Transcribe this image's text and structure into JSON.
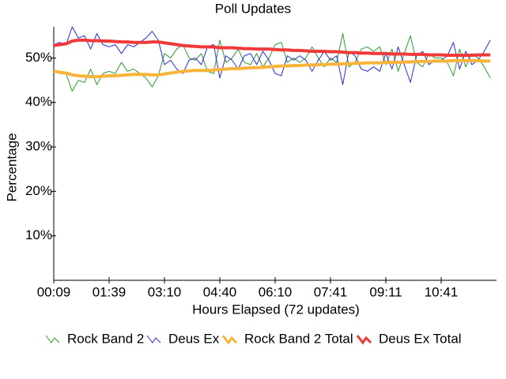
{
  "chart_data": {
    "type": "line",
    "title": "Poll Updates",
    "x_label": "Hours Elapsed (72 updates)",
    "y_label": "Percentage",
    "categories": [
      "00:09",
      null,
      null,
      null,
      null,
      null,
      null,
      null,
      null,
      "01:39",
      null,
      null,
      null,
      null,
      null,
      null,
      null,
      null,
      "03:10",
      null,
      null,
      null,
      null,
      null,
      null,
      null,
      null,
      "04:40",
      null,
      null,
      null,
      null,
      null,
      null,
      null,
      null,
      "06:10",
      null,
      null,
      null,
      null,
      null,
      null,
      null,
      null,
      "07:41",
      null,
      null,
      null,
      null,
      null,
      null,
      null,
      null,
      "09:11",
      null,
      null,
      null,
      null,
      null,
      null,
      null,
      null,
      "10:41",
      null,
      null,
      null,
      null,
      null,
      null,
      null,
      null
    ],
    "ylim": [
      0,
      57
    ],
    "yticks": [
      {
        "value": 10,
        "label": "10%"
      },
      {
        "value": 20,
        "label": "20%"
      },
      {
        "value": 30,
        "label": "30%"
      },
      {
        "value": 40,
        "label": "40%"
      },
      {
        "value": 50,
        "label": "50%"
      }
    ],
    "series": [
      {
        "name": "Rock Band 2",
        "color": "#2e9a2e",
        "width": 1,
        "values": [
          47,
          46.5,
          46.5,
          42.5,
          45,
          44.5,
          47.5,
          44,
          46.5,
          47,
          46.5,
          49,
          47,
          47.5,
          46.5,
          45.5,
          43.5,
          46,
          51,
          50,
          52,
          53,
          50,
          49.5,
          51,
          47,
          46.5,
          54,
          49,
          50,
          52,
          49,
          48.5,
          51,
          48,
          50,
          53,
          53.5,
          49,
          50,
          49,
          50,
          52.5,
          50,
          48,
          50,
          49,
          55.5,
          48,
          49,
          52,
          52.5,
          51.5,
          52.5,
          48.5,
          52,
          47,
          51,
          55,
          49,
          48,
          51,
          50,
          50,
          49,
          46,
          52,
          48,
          51,
          50,
          48,
          45.5
        ]
      },
      {
        "name": "Deus Ex",
        "color": "#2a2ae0",
        "width": 1,
        "values": [
          53,
          53.5,
          53,
          57,
          54.5,
          55,
          52,
          55.5,
          53,
          52.5,
          53,
          51,
          53,
          52.5,
          53.5,
          54.5,
          56,
          54,
          48.5,
          49.5,
          47.5,
          46.5,
          49.5,
          50,
          48.5,
          52.5,
          53,
          45.5,
          50.5,
          49.5,
          47.5,
          50.5,
          51,
          48.5,
          51.5,
          49.5,
          46.5,
          46,
          50.5,
          49.5,
          50.5,
          49.5,
          47,
          49.5,
          51.5,
          49.5,
          50.5,
          44,
          51.5,
          50.5,
          47.5,
          47,
          48,
          47,
          51,
          47.5,
          52.5,
          48.5,
          44.5,
          50.5,
          51.5,
          48.5,
          49.5,
          49.5,
          50.5,
          53.5,
          47.5,
          51.5,
          48.5,
          49.5,
          51.5,
          54
        ]
      },
      {
        "name": "Rock Band 2 Total",
        "color": "#f8b43a",
        "width": 4,
        "values": [
          47,
          46.8,
          46.6,
          46.2,
          46,
          45.9,
          45.8,
          45.8,
          45.9,
          46,
          46,
          46.1,
          46.2,
          46.3,
          46.3,
          46.3,
          46.2,
          46.2,
          46.4,
          46.6,
          46.8,
          47,
          47.1,
          47.2,
          47.2,
          47.2,
          47.3,
          47.4,
          47.5,
          47.6,
          47.6,
          47.7,
          47.8,
          47.8,
          47.9,
          48,
          48.1,
          48.2,
          48.2,
          48.3,
          48.3,
          48.4,
          48.4,
          48.5,
          48.5,
          48.6,
          48.6,
          48.7,
          48.7,
          48.8,
          48.8,
          48.9,
          48.9,
          48.9,
          49,
          49,
          49,
          49.1,
          49.1,
          49.2,
          49.2,
          49.2,
          49.3,
          49.3,
          49.3,
          49.4,
          49.4,
          49.4,
          49.4,
          49.4,
          49.3,
          49.3
        ]
      },
      {
        "name": "Deus Ex Total",
        "color": "#f03a3a",
        "width": 4,
        "values": [
          52.8,
          53,
          53.2,
          53.8,
          54,
          54,
          53.9,
          53.9,
          53.8,
          53.8,
          53.7,
          53.6,
          53.6,
          53.5,
          53.5,
          53.5,
          53.6,
          53.6,
          53.4,
          53.2,
          53,
          52.8,
          52.7,
          52.6,
          52.5,
          52.5,
          52.5,
          52.3,
          52.3,
          52.3,
          52.2,
          52.1,
          52.1,
          52,
          52,
          52,
          51.9,
          51.8,
          51.8,
          51.7,
          51.7,
          51.6,
          51.5,
          51.5,
          51.5,
          51.4,
          51.4,
          51.3,
          51.2,
          51.2,
          51.1,
          51.1,
          51,
          51,
          51,
          50.9,
          50.9,
          50.9,
          50.8,
          50.8,
          50.8,
          50.7,
          50.7,
          50.7,
          50.6,
          50.6,
          50.6,
          50.6,
          50.6,
          50.7,
          50.7,
          50.7
        ]
      }
    ]
  }
}
